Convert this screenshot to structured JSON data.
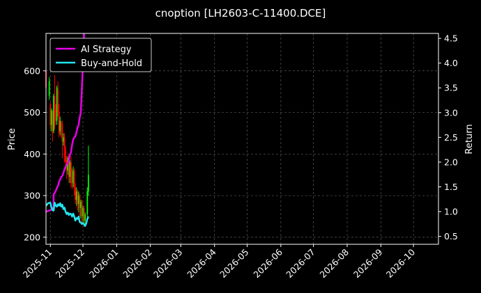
{
  "chart_data": {
    "type": "line",
    "title": "cnoption [LH2603-C-11400.DCE]",
    "ylabel_left": "Price",
    "ylabel_right": "Return",
    "ylim_left": [
      183,
      690
    ],
    "ylim_right": [
      0.34,
      4.6
    ],
    "yticks_left": [
      "200",
      "300",
      "400",
      "500",
      "600"
    ],
    "yticks_right": [
      "0.5",
      "1.0",
      "1.5",
      "2.0",
      "2.5",
      "3.0",
      "3.5",
      "4.0",
      "4.5"
    ],
    "xlim": [
      "2025-10-28",
      "2026-10-24"
    ],
    "xticks": [
      {
        "date": "2025-11-01",
        "label": "2025-11"
      },
      {
        "date": "2025-12-01",
        "label": "2025-12"
      },
      {
        "date": "2026-01-01",
        "label": "2026-01"
      },
      {
        "date": "2026-02-01",
        "label": "2026-02"
      },
      {
        "date": "2026-03-01",
        "label": "2026-03"
      },
      {
        "date": "2026-04-01",
        "label": "2026-04"
      },
      {
        "date": "2026-05-01",
        "label": "2026-05"
      },
      {
        "date": "2026-06-01",
        "label": "2026-06"
      },
      {
        "date": "2026-07-01",
        "label": "2026-07"
      },
      {
        "date": "2026-08-01",
        "label": "2026-08"
      },
      {
        "date": "2026-09-01",
        "label": "2026-09"
      },
      {
        "date": "2026-10-01",
        "label": "2026-10"
      }
    ],
    "grid": true,
    "legend_position": "top-left",
    "background": "#000000",
    "up_color": "#00ff00",
    "down_color": "#ff0000",
    "candles": [
      {
        "date": "2025-10-28",
        "open": 600,
        "close": 560,
        "high": 650,
        "low": 530
      },
      {
        "date": "2025-10-31",
        "open": 540,
        "close": 575,
        "high": 585,
        "low": 530
      },
      {
        "date": "2025-11-01",
        "open": 520,
        "close": 470,
        "high": 525,
        "low": 460
      },
      {
        "date": "2025-11-02",
        "open": 470,
        "close": 505,
        "high": 510,
        "low": 455
      },
      {
        "date": "2025-11-03",
        "open": 500,
        "close": 450,
        "high": 505,
        "low": 430
      },
      {
        "date": "2025-11-04",
        "open": 455,
        "close": 540,
        "high": 545,
        "low": 450
      },
      {
        "date": "2025-11-05",
        "open": 540,
        "close": 500,
        "high": 590,
        "low": 460
      },
      {
        "date": "2025-11-06",
        "open": 505,
        "close": 480,
        "high": 520,
        "low": 470
      },
      {
        "date": "2025-11-07",
        "open": 480,
        "close": 560,
        "high": 565,
        "low": 470
      },
      {
        "date": "2025-11-08",
        "open": 555,
        "close": 500,
        "high": 575,
        "low": 490
      },
      {
        "date": "2025-11-09",
        "open": 500,
        "close": 450,
        "high": 520,
        "low": 440
      },
      {
        "date": "2025-11-10",
        "open": 455,
        "close": 480,
        "high": 490,
        "low": 445
      },
      {
        "date": "2025-11-11",
        "open": 475,
        "close": 470,
        "high": 480,
        "low": 440
      },
      {
        "date": "2025-11-12",
        "open": 470,
        "close": 430,
        "high": 480,
        "low": 390
      },
      {
        "date": "2025-11-13",
        "open": 430,
        "close": 440,
        "high": 450,
        "low": 420
      },
      {
        "date": "2025-11-14",
        "open": 440,
        "close": 410,
        "high": 450,
        "low": 380
      },
      {
        "date": "2025-11-15",
        "open": 410,
        "close": 380,
        "high": 420,
        "low": 370
      },
      {
        "date": "2025-11-16",
        "open": 385,
        "close": 360,
        "high": 395,
        "low": 340
      },
      {
        "date": "2025-11-17",
        "open": 360,
        "close": 390,
        "high": 395,
        "low": 350
      },
      {
        "date": "2025-11-18",
        "open": 390,
        "close": 345,
        "high": 400,
        "low": 330
      },
      {
        "date": "2025-11-19",
        "open": 345,
        "close": 380,
        "high": 385,
        "low": 330
      },
      {
        "date": "2025-11-20",
        "open": 380,
        "close": 355,
        "high": 395,
        "low": 320
      },
      {
        "date": "2025-11-21",
        "open": 355,
        "close": 330,
        "high": 365,
        "low": 315
      },
      {
        "date": "2025-11-22",
        "open": 330,
        "close": 360,
        "high": 370,
        "low": 320
      },
      {
        "date": "2025-11-23",
        "open": 360,
        "close": 320,
        "high": 365,
        "low": 300
      },
      {
        "date": "2025-11-24",
        "open": 320,
        "close": 290,
        "high": 330,
        "low": 280
      },
      {
        "date": "2025-11-25",
        "open": 290,
        "close": 310,
        "high": 320,
        "low": 275
      },
      {
        "date": "2025-11-26",
        "open": 310,
        "close": 280,
        "high": 315,
        "low": 265
      },
      {
        "date": "2025-11-27",
        "open": 280,
        "close": 300,
        "high": 310,
        "low": 260
      },
      {
        "date": "2025-11-28",
        "open": 300,
        "close": 270,
        "high": 305,
        "low": 250
      },
      {
        "date": "2025-11-29",
        "open": 270,
        "close": 285,
        "high": 290,
        "low": 245
      },
      {
        "date": "2025-11-30",
        "open": 285,
        "close": 250,
        "high": 290,
        "low": 235
      },
      {
        "date": "2025-12-01",
        "open": 250,
        "close": 270,
        "high": 275,
        "low": 235
      },
      {
        "date": "2025-12-02",
        "open": 270,
        "close": 240,
        "high": 275,
        "low": 225
      },
      {
        "date": "2025-12-03",
        "open": 240,
        "close": 255,
        "high": 260,
        "low": 230
      },
      {
        "date": "2025-12-05",
        "open": 255,
        "close": 310,
        "high": 320,
        "low": 245
      },
      {
        "date": "2025-12-06",
        "open": 310,
        "close": 350,
        "high": 420,
        "low": 300
      }
    ],
    "series": [
      {
        "name": "AI Strategy",
        "axis": "right",
        "color": "#e800e8",
        "x": [
          "2025-10-28",
          "2025-10-31",
          "2025-11-02",
          "2025-11-03",
          "2025-11-04",
          "2025-11-04",
          "2025-11-05",
          "2025-11-06",
          "2025-11-07",
          "2025-11-08",
          "2025-11-09",
          "2025-11-10",
          "2025-11-11",
          "2025-11-12",
          "2025-11-13",
          "2025-11-14",
          "2025-11-15",
          "2025-11-16",
          "2025-11-17",
          "2025-11-18",
          "2025-11-19",
          "2025-11-20",
          "2025-11-21",
          "2025-11-22",
          "2025-11-23",
          "2025-11-24",
          "2025-11-25",
          "2025-11-26",
          "2025-11-27",
          "2025-11-28",
          "2025-11-29",
          "2025-11-30",
          "2025-12-01",
          "2025-12-02"
        ],
        "values": [
          1.0,
          1.02,
          1.04,
          1.05,
          1.1,
          1.35,
          1.38,
          1.42,
          1.48,
          1.52,
          1.6,
          1.65,
          1.7,
          1.72,
          1.78,
          1.85,
          1.9,
          1.95,
          1.97,
          2.05,
          2.15,
          2.2,
          2.35,
          2.45,
          2.5,
          2.52,
          2.6,
          2.7,
          2.75,
          2.9,
          3.0,
          3.5,
          4.0,
          4.6
        ]
      },
      {
        "name": "Buy-and-Hold",
        "axis": "right",
        "color": "#22e5ee",
        "x": [
          "2025-10-28",
          "2025-10-30",
          "2025-11-01",
          "2025-11-02",
          "2025-11-03",
          "2025-11-04",
          "2025-11-05",
          "2025-11-06",
          "2025-11-07",
          "2025-11-08",
          "2025-11-09",
          "2025-11-10",
          "2025-11-11",
          "2025-11-12",
          "2025-11-13",
          "2025-11-14",
          "2025-11-15",
          "2025-11-16",
          "2025-11-17",
          "2025-11-18",
          "2025-11-19",
          "2025-11-20",
          "2025-11-21",
          "2025-11-22",
          "2025-11-23",
          "2025-11-24",
          "2025-11-25",
          "2025-11-26",
          "2025-11-27",
          "2025-11-28",
          "2025-11-29",
          "2025-11-30",
          "2025-12-01",
          "2025-12-02",
          "2025-12-03",
          "2025-12-04",
          "2025-12-05",
          "2025-12-06"
        ],
        "values": [
          1.12,
          1.17,
          1.18,
          1.08,
          1.03,
          1.02,
          1.18,
          1.12,
          1.1,
          1.15,
          1.12,
          1.17,
          1.1,
          1.14,
          1.05,
          1.08,
          1.0,
          0.95,
          0.98,
          0.93,
          0.96,
          0.95,
          0.9,
          0.96,
          0.9,
          0.82,
          0.87,
          0.85,
          0.9,
          0.79,
          0.78,
          0.75,
          0.77,
          0.74,
          0.71,
          0.76,
          0.85,
          0.9
        ]
      }
    ]
  }
}
